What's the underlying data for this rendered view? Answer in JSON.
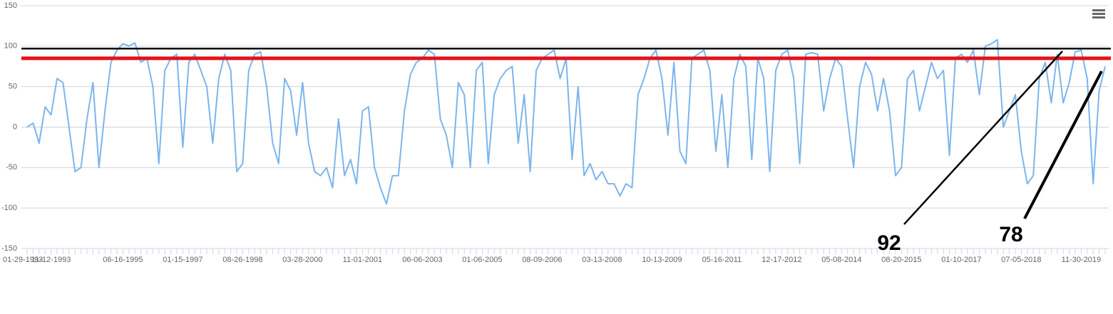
{
  "chart_data": {
    "type": "line",
    "color": "#7cb5ec",
    "grid": true,
    "ylim": [
      -150,
      150
    ],
    "yticks": [
      -150,
      -100,
      -50,
      0,
      50,
      100,
      150
    ],
    "categories": [
      "01-29-1993",
      null,
      null,
      null,
      "11-12-1993",
      null,
      null,
      null,
      null,
      null,
      null,
      null,
      null,
      null,
      null,
      null,
      "06-16-1995",
      null,
      null,
      null,
      null,
      null,
      null,
      null,
      null,
      null,
      "01-15-1997",
      null,
      null,
      null,
      null,
      null,
      null,
      null,
      null,
      null,
      "08-26-1998",
      null,
      null,
      null,
      null,
      null,
      null,
      null,
      null,
      null,
      "03-28-2000",
      null,
      null,
      null,
      null,
      null,
      null,
      null,
      null,
      null,
      "11-01-2001",
      null,
      null,
      null,
      null,
      null,
      null,
      null,
      null,
      null,
      "06-06-2003",
      null,
      null,
      null,
      null,
      null,
      null,
      null,
      null,
      null,
      "01-06-2005",
      null,
      null,
      null,
      null,
      null,
      null,
      null,
      null,
      null,
      "08-09-2006",
      null,
      null,
      null,
      null,
      null,
      null,
      null,
      null,
      null,
      "03-13-2008",
      null,
      null,
      null,
      null,
      null,
      null,
      null,
      null,
      null,
      "10-13-2009",
      null,
      null,
      null,
      null,
      null,
      null,
      null,
      null,
      null,
      "05-16-2011",
      null,
      null,
      null,
      null,
      null,
      null,
      null,
      null,
      null,
      "12-17-2012",
      null,
      null,
      null,
      null,
      null,
      null,
      null,
      null,
      null,
      "05-08-2014",
      null,
      null,
      null,
      null,
      null,
      null,
      null,
      null,
      null,
      "08-20-2015",
      null,
      null,
      null,
      null,
      null,
      null,
      null,
      null,
      null,
      "01-10-2017",
      null,
      null,
      null,
      null,
      null,
      null,
      null,
      null,
      null,
      "07-05-2018",
      null,
      null,
      null,
      null,
      null,
      null,
      null,
      null,
      null,
      "11-30-2019",
      null,
      null,
      null,
      null
    ],
    "values": [
      0,
      5,
      -20,
      25,
      15,
      60,
      55,
      0,
      -55,
      -50,
      10,
      55,
      -50,
      20,
      80,
      95,
      103,
      100,
      104,
      80,
      85,
      50,
      -45,
      70,
      85,
      90,
      -25,
      80,
      90,
      70,
      50,
      -20,
      60,
      90,
      70,
      -55,
      -45,
      70,
      90,
      93,
      50,
      -20,
      -45,
      60,
      45,
      -10,
      55,
      -20,
      -55,
      -60,
      -50,
      -75,
      10,
      -60,
      -40,
      -70,
      20,
      25,
      -50,
      -75,
      -95,
      -60,
      -60,
      20,
      65,
      80,
      85,
      95,
      90,
      10,
      -10,
      -50,
      55,
      40,
      -50,
      70,
      80,
      -45,
      40,
      60,
      70,
      75,
      -20,
      40,
      -55,
      70,
      85,
      90,
      95,
      60,
      85,
      -40,
      50,
      -60,
      -45,
      -65,
      -55,
      -70,
      -70,
      -85,
      -70,
      -75,
      40,
      60,
      85,
      95,
      60,
      -10,
      80,
      -30,
      -45,
      85,
      90,
      95,
      70,
      -30,
      40,
      -50,
      60,
      90,
      75,
      -40,
      85,
      60,
      -55,
      70,
      90,
      95,
      60,
      -45,
      90,
      92,
      90,
      20,
      60,
      85,
      75,
      10,
      -50,
      50,
      80,
      65,
      20,
      60,
      20,
      -60,
      -50,
      60,
      70,
      20,
      50,
      80,
      60,
      70,
      -35,
      85,
      90,
      80,
      95,
      40,
      100,
      103,
      108,
      0,
      20,
      40,
      -30,
      -70,
      -60,
      60,
      80,
      30,
      90,
      30,
      55,
      93,
      95,
      60,
      -70,
      45,
      75
    ],
    "reference_lines": [
      {
        "value": 97,
        "color": "#000000"
      },
      {
        "value": 85,
        "color": "#e3121b"
      }
    ],
    "annotations": [
      {
        "text": "92"
      },
      {
        "text": "78"
      }
    ]
  }
}
